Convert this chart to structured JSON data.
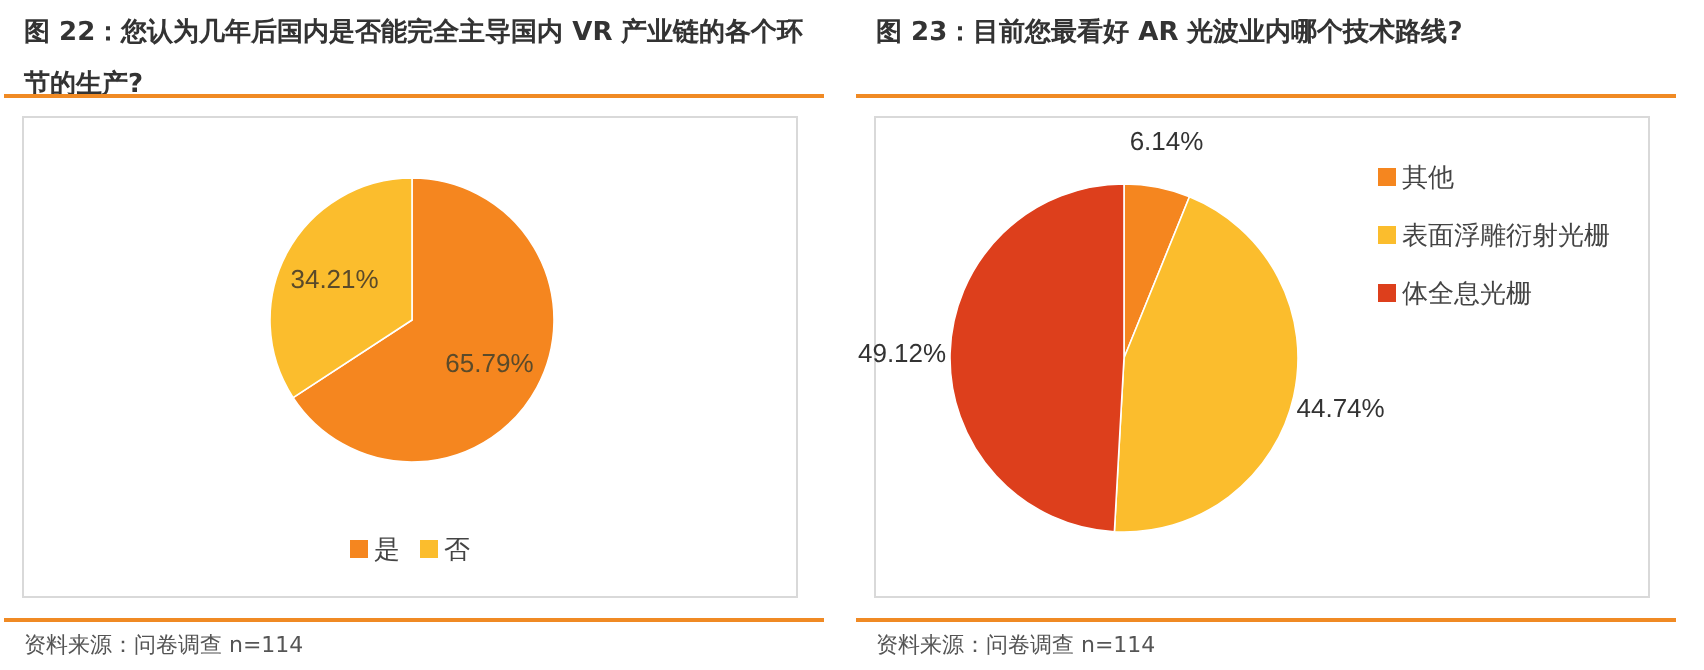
{
  "chart_data": [
    {
      "type": "pie",
      "title": "图 22：您认为几年后国内是否能完全主导国内 VR 产业链的各个环节的生产?",
      "categories": [
        "是",
        "否"
      ],
      "values": [
        65.79,
        34.21
      ],
      "colors": [
        "#f5861f",
        "#fbbd2d"
      ],
      "value_labels": [
        "65.79%",
        "34.21%"
      ],
      "legend": "bottom",
      "annotations": [
        "资料来源：问卷调查 n=114"
      ]
    },
    {
      "type": "pie",
      "title": "图 23：目前您最看好 AR 光波业内哪个技术路线?",
      "categories": [
        "其他",
        "表面浮雕衍射光栅",
        "体全息光栅"
      ],
      "values": [
        6.14,
        44.74,
        49.12
      ],
      "colors": [
        "#f5861f",
        "#fbbd2d",
        "#dd3f1c"
      ],
      "value_labels": [
        "6.14%",
        "44.74%",
        "49.12%"
      ],
      "legend": "right",
      "annotations": [
        "资料来源：问卷调查 n=114"
      ]
    }
  ]
}
